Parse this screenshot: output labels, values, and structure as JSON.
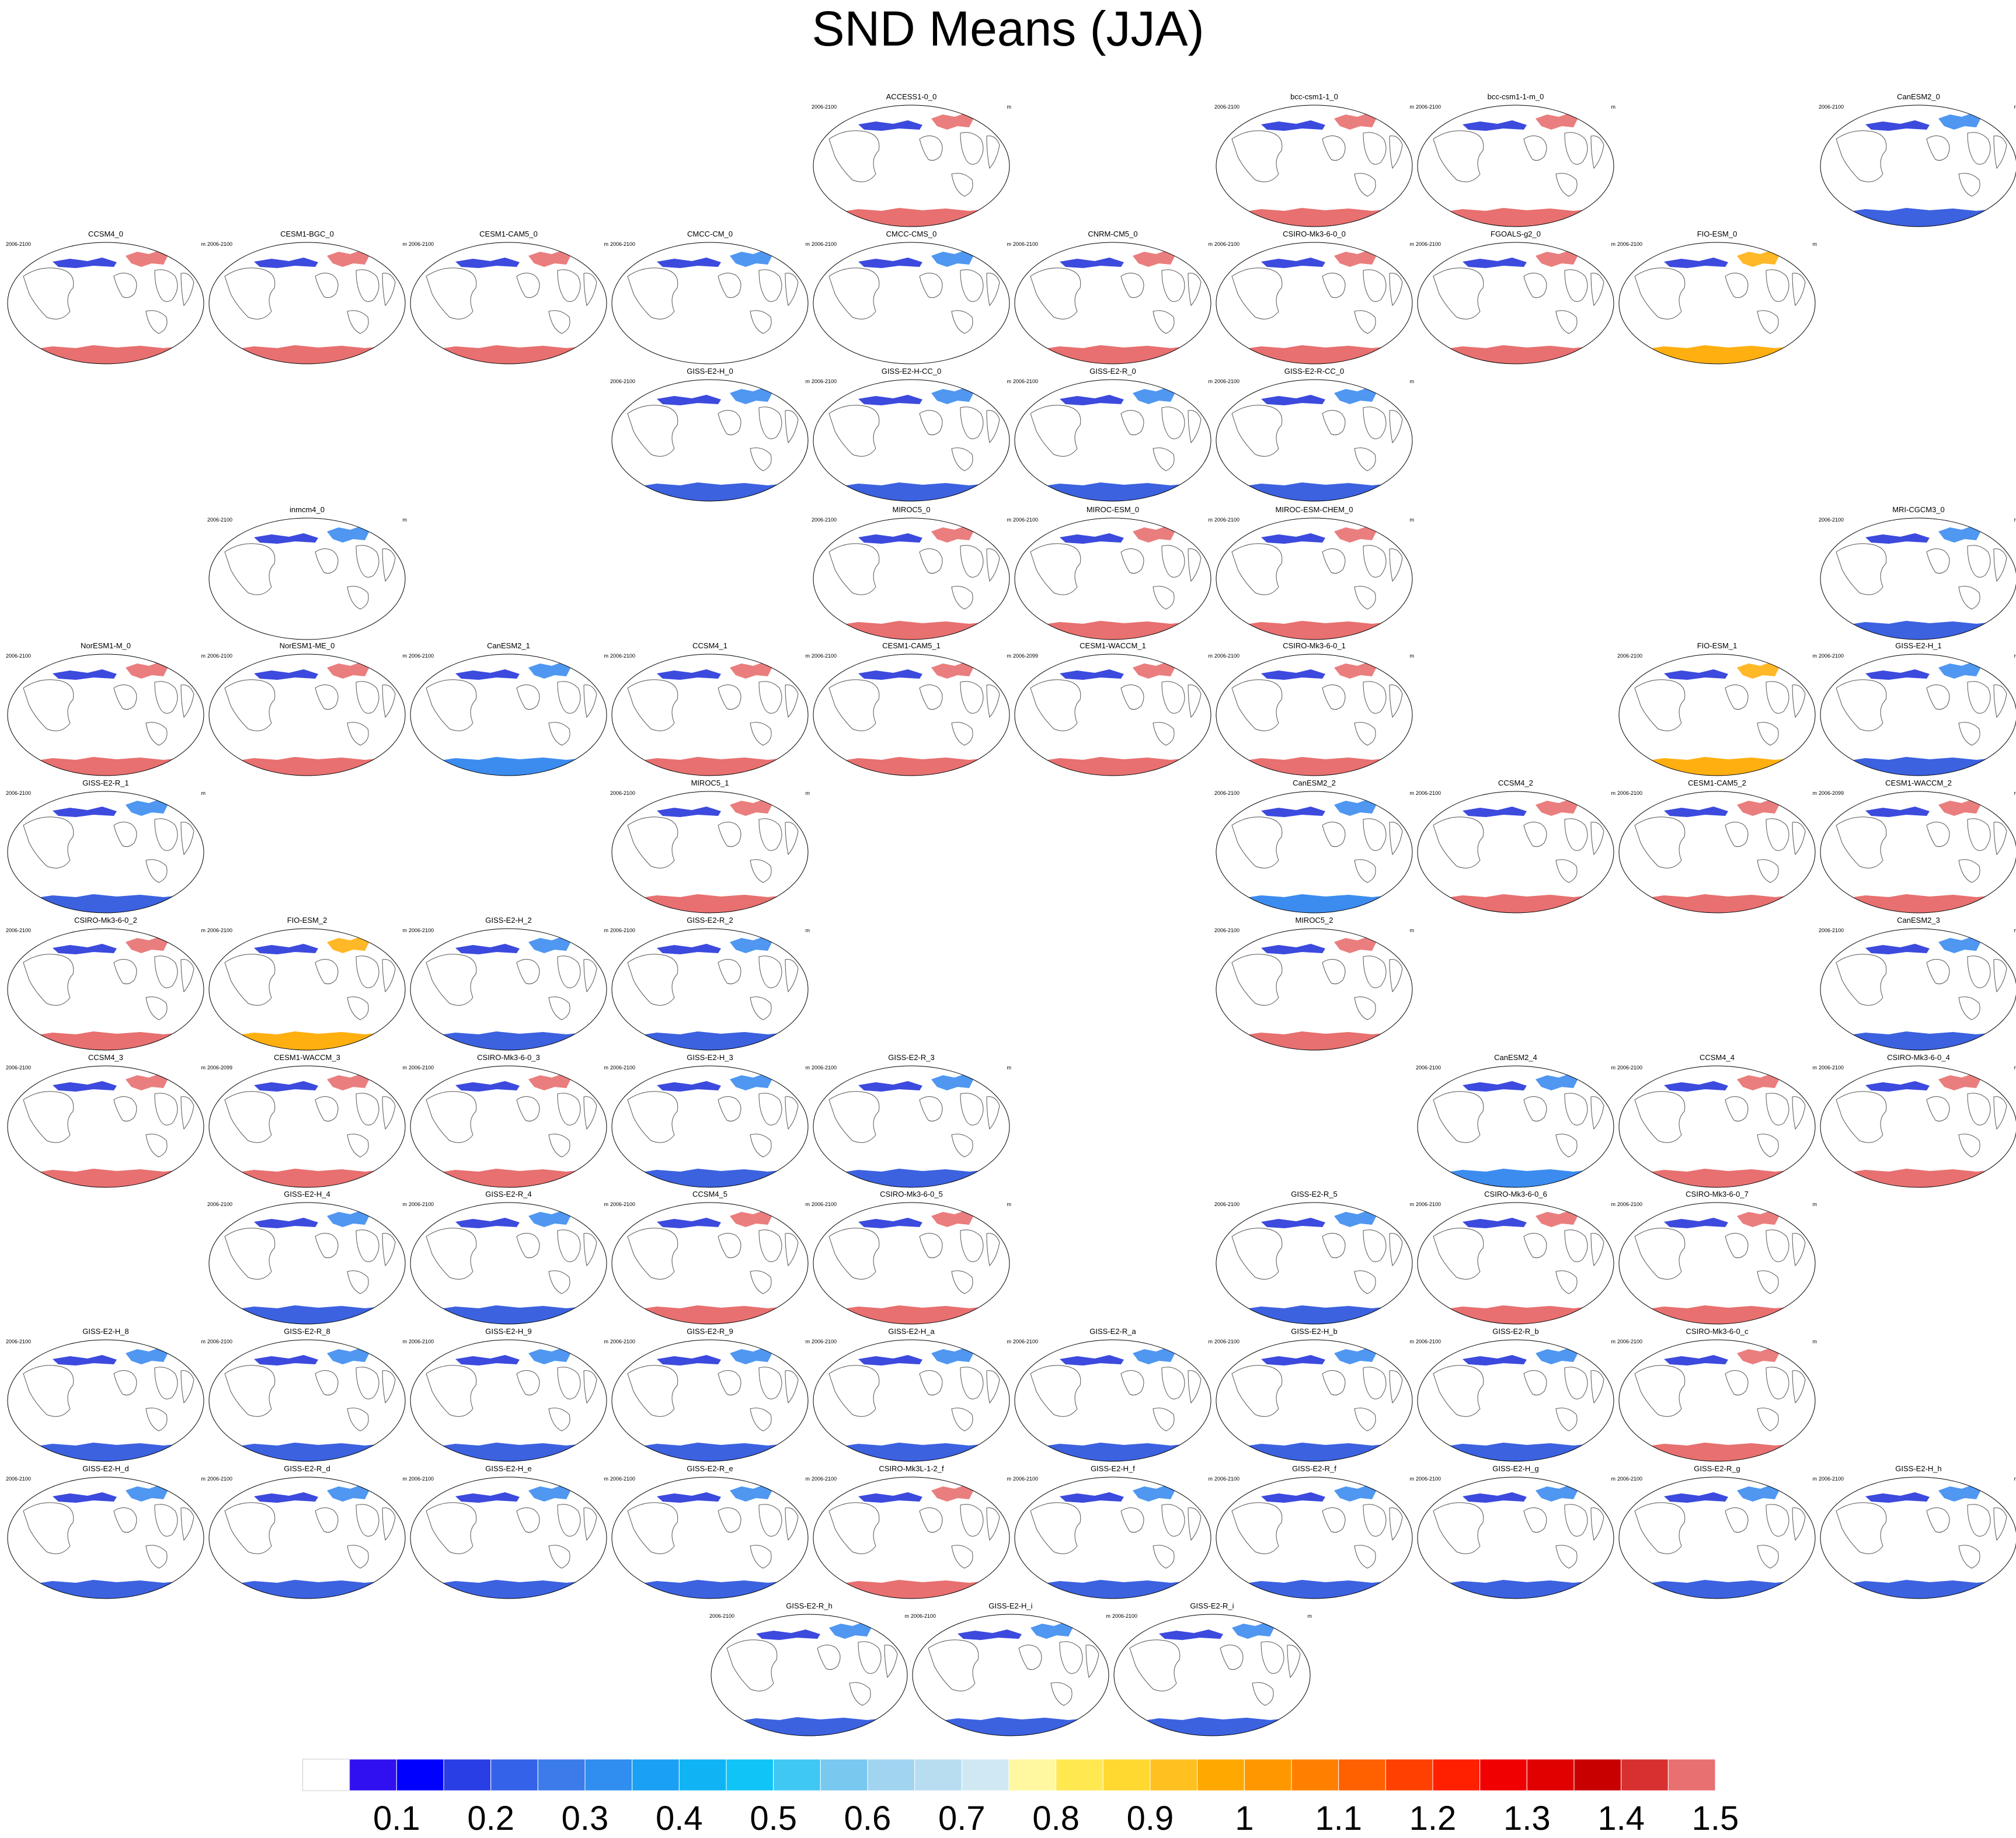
{
  "title": "SND Means (JJA)",
  "units": "m",
  "colorbar": {
    "labels": [
      "0.1",
      "0.2",
      "0.3",
      "0.4",
      "0.5",
      "0.6",
      "0.7",
      "0.8",
      "0.9",
      "1",
      "1.1",
      "1.2",
      "1.3",
      "1.4",
      "1.5"
    ],
    "colors": [
      "#ffffff",
      "#3010f0",
      "#0000ff",
      "#2a3ee6",
      "#3462e8",
      "#3c7bea",
      "#2f8eef",
      "#1aa0f5",
      "#10b4f5",
      "#10c4f8",
      "#40c8f5",
      "#78c8f0",
      "#a0d4f0",
      "#b8dcf0",
      "#d0e8f4",
      "#fff8a0",
      "#ffe850",
      "#ffd830",
      "#ffc020",
      "#ffa800",
      "#ff9800",
      "#ff8000",
      "#ff6000",
      "#ff4000",
      "#ff2000",
      "#f00000",
      "#e00000",
      "#c80000",
      "#d83030",
      "#e87070"
    ]
  },
  "chart_data": {
    "type": "heatmap",
    "title": "SND Means (JJA)",
    "units": "m",
    "variable": "SND",
    "season": "JJA",
    "panels": [
      {
        "name": "ACCESS1-0_0",
        "period": "2006-2100",
        "antarctic": "red"
      },
      {
        "name": "bcc-csm1-1_0",
        "period": "2006-2100",
        "antarctic": "red"
      },
      {
        "name": "bcc-csm1-1-m_0",
        "period": "2006-2100",
        "antarctic": "red"
      },
      {
        "name": "CanESM2_0",
        "period": "2006-2100",
        "antarctic": "blue"
      },
      {
        "name": "CCSM4_0",
        "period": "2006-2100",
        "antarctic": "red"
      },
      {
        "name": "CESM1-BGC_0",
        "period": "2006-2100",
        "antarctic": "red"
      },
      {
        "name": "CESM1-CAM5_0",
        "period": "2006-2100",
        "antarctic": "red"
      },
      {
        "name": "CMCC-CM_0",
        "period": "2006-2100",
        "antarctic": "none"
      },
      {
        "name": "CMCC-CMS_0",
        "period": "2006-2100",
        "antarctic": "none"
      },
      {
        "name": "CNRM-CM5_0",
        "period": "2006-2100",
        "antarctic": "red"
      },
      {
        "name": "CSIRO-Mk3-6-0_0",
        "period": "2006-2100",
        "antarctic": "red"
      },
      {
        "name": "FGOALS-g2_0",
        "period": "2006-2100",
        "antarctic": "red"
      },
      {
        "name": "FIO-ESM_0",
        "period": "2006-2100",
        "antarctic": "orange"
      },
      {
        "name": "GISS-E2-H_0",
        "period": "2006-2100",
        "antarctic": "blue"
      },
      {
        "name": "GISS-E2-H-CC_0",
        "period": "2006-2100",
        "antarctic": "blue"
      },
      {
        "name": "GISS-E2-R_0",
        "period": "2006-2100",
        "antarctic": "blue"
      },
      {
        "name": "GISS-E2-R-CC_0",
        "period": "2006-2100",
        "antarctic": "blue"
      },
      {
        "name": "inmcm4_0",
        "period": "2006-2100",
        "antarctic": "none"
      },
      {
        "name": "MIROC5_0",
        "period": "2006-2100",
        "antarctic": "red"
      },
      {
        "name": "MIROC-ESM_0",
        "period": "2006-2100",
        "antarctic": "red"
      },
      {
        "name": "MIROC-ESM-CHEM_0",
        "period": "2006-2100",
        "antarctic": "red"
      },
      {
        "name": "MRI-CGCM3_0",
        "period": "2006-2100",
        "antarctic": "blue"
      },
      {
        "name": "NorESM1-M_0",
        "period": "2006-2100",
        "antarctic": "red"
      },
      {
        "name": "NorESM1-ME_0",
        "period": "2006-2100",
        "antarctic": "red"
      },
      {
        "name": "CanESM2_1",
        "period": "2006-2100",
        "antarctic": "lightblue"
      },
      {
        "name": "CCSM4_1",
        "period": "2006-2100",
        "antarctic": "red"
      },
      {
        "name": "CESM1-CAM5_1",
        "period": "2006-2100",
        "antarctic": "red"
      },
      {
        "name": "CESM1-WACCM_1",
        "period": "2006-2099",
        "antarctic": "red"
      },
      {
        "name": "CSIRO-Mk3-6-0_1",
        "period": "2006-2100",
        "antarctic": "red"
      },
      {
        "name": "FIO-ESM_1",
        "period": "2006-2100",
        "antarctic": "orange"
      },
      {
        "name": "GISS-E2-H_1",
        "period": "2006-2100",
        "antarctic": "blue"
      },
      {
        "name": "GISS-E2-R_1",
        "period": "2006-2100",
        "antarctic": "blue"
      },
      {
        "name": "MIROC5_1",
        "period": "2006-2100",
        "antarctic": "red"
      },
      {
        "name": "CanESM2_2",
        "period": "2006-2100",
        "antarctic": "lightblue"
      },
      {
        "name": "CCSM4_2",
        "period": "2006-2100",
        "antarctic": "red"
      },
      {
        "name": "CESM1-CAM5_2",
        "period": "2006-2100",
        "antarctic": "red"
      },
      {
        "name": "CESM1-WACCM_2",
        "period": "2006-2099",
        "antarctic": "red"
      },
      {
        "name": "CSIRO-Mk3-6-0_2",
        "period": "2006-2100",
        "antarctic": "red"
      },
      {
        "name": "FIO-ESM_2",
        "period": "2006-2100",
        "antarctic": "orange"
      },
      {
        "name": "GISS-E2-H_2",
        "period": "2006-2100",
        "antarctic": "blue"
      },
      {
        "name": "GISS-E2-R_2",
        "period": "2006-2100",
        "antarctic": "blue"
      },
      {
        "name": "MIROC5_2",
        "period": "2006-2100",
        "antarctic": "red"
      },
      {
        "name": "CanESM2_3",
        "period": "2006-2100",
        "antarctic": "blue"
      },
      {
        "name": "CCSM4_3",
        "period": "2006-2100",
        "antarctic": "red"
      },
      {
        "name": "CESM1-WACCM_3",
        "period": "2006-2099",
        "antarctic": "red"
      },
      {
        "name": "CSIRO-Mk3-6-0_3",
        "period": "2006-2100",
        "antarctic": "red"
      },
      {
        "name": "GISS-E2-H_3",
        "period": "2006-2100",
        "antarctic": "blue"
      },
      {
        "name": "GISS-E2-R_3",
        "period": "2006-2100",
        "antarctic": "blue"
      },
      {
        "name": "CanESM2_4",
        "period": "2006-2100",
        "antarctic": "lightblue"
      },
      {
        "name": "CCSM4_4",
        "period": "2006-2100",
        "antarctic": "red"
      },
      {
        "name": "CSIRO-Mk3-6-0_4",
        "period": "2006-2100",
        "antarctic": "red"
      },
      {
        "name": "GISS-E2-H_4",
        "period": "2006-2100",
        "antarctic": "blue"
      },
      {
        "name": "GISS-E2-R_4",
        "period": "2006-2100",
        "antarctic": "blue"
      },
      {
        "name": "CCSM4_5",
        "period": "2006-2100",
        "antarctic": "red"
      },
      {
        "name": "CSIRO-Mk3-6-0_5",
        "period": "2006-2100",
        "antarctic": "red"
      },
      {
        "name": "GISS-E2-R_5",
        "period": "2006-2100",
        "antarctic": "blue"
      },
      {
        "name": "CSIRO-Mk3-6-0_6",
        "period": "2006-2100",
        "antarctic": "red"
      },
      {
        "name": "CSIRO-Mk3-6-0_7",
        "period": "2006-2100",
        "antarctic": "red"
      },
      {
        "name": "GISS-E2-H_8",
        "period": "2006-2100",
        "antarctic": "blue"
      },
      {
        "name": "GISS-E2-R_8",
        "period": "2006-2100",
        "antarctic": "blue"
      },
      {
        "name": "GISS-E2-H_9",
        "period": "2006-2100",
        "antarctic": "blue"
      },
      {
        "name": "GISS-E2-R_9",
        "period": "2006-2100",
        "antarctic": "blue"
      },
      {
        "name": "GISS-E2-H_a",
        "period": "2006-2100",
        "antarctic": "blue"
      },
      {
        "name": "GISS-E2-R_a",
        "period": "2006-2100",
        "antarctic": "blue"
      },
      {
        "name": "GISS-E2-H_b",
        "period": "2006-2100",
        "antarctic": "blue"
      },
      {
        "name": "GISS-E2-R_b",
        "period": "2006-2100",
        "antarctic": "blue"
      },
      {
        "name": "CSIRO-Mk3-6-0_c",
        "period": "2006-2100",
        "antarctic": "red"
      },
      {
        "name": "GISS-E2-H_d",
        "period": "2006-2100",
        "antarctic": "blue"
      },
      {
        "name": "GISS-E2-R_d",
        "period": "2006-2100",
        "antarctic": "blue"
      },
      {
        "name": "GISS-E2-H_e",
        "period": "2006-2100",
        "antarctic": "blue"
      },
      {
        "name": "GISS-E2-R_e",
        "period": "2006-2100",
        "antarctic": "blue"
      },
      {
        "name": "CSIRO-Mk3L-1-2_f",
        "period": "2006-2100",
        "antarctic": "red"
      },
      {
        "name": "GISS-E2-H_f",
        "period": "2006-2100",
        "antarctic": "blue"
      },
      {
        "name": "GISS-E2-R_f",
        "period": "2006-2100",
        "antarctic": "blue"
      },
      {
        "name": "GISS-E2-H_g",
        "period": "2006-2100",
        "antarctic": "blue"
      },
      {
        "name": "GISS-E2-R_g",
        "period": "2006-2100",
        "antarctic": "blue"
      },
      {
        "name": "GISS-E2-H_h",
        "period": "2006-2100",
        "antarctic": "blue"
      },
      {
        "name": "GISS-E2-R_h",
        "period": "2006-2100",
        "antarctic": "blue"
      },
      {
        "name": "GISS-E2-H_i",
        "period": "2006-2100",
        "antarctic": "blue"
      },
      {
        "name": "GISS-E2-R_i",
        "period": "2006-2100",
        "antarctic": "blue"
      }
    ]
  }
}
